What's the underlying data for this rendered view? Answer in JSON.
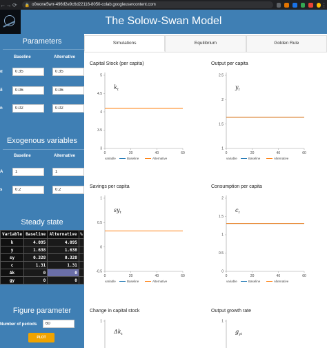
{
  "browser": {
    "url": "o0wone5wrr-496tf2e9c6d22116-8050-colab.googleusercontent.com"
  },
  "app": {
    "title": "The Solow-Swan Model"
  },
  "sidebar": {
    "parameters": {
      "title": "Parameters",
      "col_baseline": "Baseline",
      "col_alternative": "Alternative",
      "rows": [
        {
          "label": "α",
          "baseline": "0.35",
          "alternative": "0.35"
        },
        {
          "label": "δ",
          "baseline": "0.06",
          "alternative": "0.06"
        },
        {
          "label": "n",
          "baseline": "0.02",
          "alternative": "0.02"
        }
      ]
    },
    "exogenous": {
      "title": "Exogenous variables",
      "col_baseline": "Baseline",
      "col_alternative": "Alternative",
      "rows": [
        {
          "label": "A",
          "baseline": "1",
          "alternative": "1"
        },
        {
          "label": "s",
          "baseline": "0.2",
          "alternative": "0.2"
        }
      ]
    },
    "steady_state": {
      "title": "Steady state",
      "headers": [
        "Variable",
        "Baseline",
        "Alternative",
        "%"
      ],
      "rows": [
        {
          "var": "k",
          "baseline": "4.095",
          "alternative": "4.095"
        },
        {
          "var": "y",
          "baseline": "1.638",
          "alternative": "1.638"
        },
        {
          "var": "sy",
          "baseline": "0.328",
          "alternative": "0.328"
        },
        {
          "var": "c",
          "baseline": "1.31",
          "alternative": "1.31"
        },
        {
          "var": "Δk",
          "baseline": "0",
          "alternative": "0"
        },
        {
          "var": "gy",
          "baseline": "0",
          "alternative": "0"
        }
      ]
    },
    "figure": {
      "title": "Figure parameter",
      "periods_label": "Number of periods",
      "periods_value": "60",
      "plot_button": "PLOT"
    }
  },
  "tabs": [
    {
      "label": "Simulations",
      "active": true
    },
    {
      "label": "Equilibrium",
      "active": false
    },
    {
      "label": "Golden Rule",
      "active": false
    }
  ],
  "legend": {
    "label": "variable",
    "baseline": "Baseline",
    "alternative": "Alternative"
  },
  "colors": {
    "baseline": "#1f77b4",
    "alternative": "#ff7f0e",
    "sidebar": "#3f7fb4",
    "button": "#f0a300"
  },
  "chart_data": [
    {
      "type": "line",
      "title": "Capital Stock (per capita)",
      "symbol": "k",
      "sub": "t",
      "x_ticks": [
        "0",
        "20",
        "40",
        "60"
      ],
      "y_ticks": [
        "3",
        "3.5",
        "4",
        "4.5",
        "5"
      ],
      "ylim": [
        3,
        5
      ],
      "xlim": [
        0,
        60
      ],
      "series": [
        {
          "name": "Baseline",
          "value": 4.095
        },
        {
          "name": "Alternative",
          "value": 4.095
        }
      ]
    },
    {
      "type": "line",
      "title": "Output per capita",
      "symbol": "y",
      "sub": "t",
      "x_ticks": [
        "0",
        "20",
        "40",
        "60"
      ],
      "y_ticks": [
        "1",
        "1.5",
        "2",
        "2.5"
      ],
      "ylim": [
        1,
        2.5
      ],
      "xlim": [
        0,
        60
      ],
      "series": [
        {
          "name": "Baseline",
          "value": 1.638
        },
        {
          "name": "Alternative",
          "value": 1.638
        }
      ]
    },
    {
      "type": "line",
      "title": "Savings per capita",
      "symbol": "sy",
      "sub": "t",
      "x_ticks": [
        "0",
        "20",
        "40",
        "60"
      ],
      "y_ticks": [
        "-0.5",
        "0",
        "0.5",
        "1"
      ],
      "ylim": [
        -0.5,
        1
      ],
      "xlim": [
        0,
        60
      ],
      "series": [
        {
          "name": "Baseline",
          "value": 0.328
        },
        {
          "name": "Alternative",
          "value": 0.328
        }
      ]
    },
    {
      "type": "line",
      "title": "Consumption per capita",
      "symbol": "c",
      "sub": "t",
      "x_ticks": [
        "0",
        "20",
        "40",
        "60"
      ],
      "y_ticks": [
        "0",
        "0.5",
        "1",
        "1.5",
        "2"
      ],
      "ylim": [
        0,
        2
      ],
      "xlim": [
        0,
        60
      ],
      "series": [
        {
          "name": "Baseline",
          "value": 1.31
        },
        {
          "name": "Alternative",
          "value": 1.31
        }
      ]
    },
    {
      "type": "line",
      "title": "Change in capital stock",
      "symbol": "Δk",
      "sub": "t",
      "x_ticks": [],
      "y_ticks": [
        "1"
      ],
      "ylim": [
        -1,
        1
      ],
      "xlim": [
        0,
        60
      ],
      "series": []
    },
    {
      "type": "line",
      "title": "Output growth rate",
      "symbol": "g",
      "sub": "yt",
      "x_ticks": [],
      "y_ticks": [
        "1"
      ],
      "ylim": [
        -1,
        1
      ],
      "xlim": [
        0,
        60
      ],
      "series": []
    }
  ]
}
